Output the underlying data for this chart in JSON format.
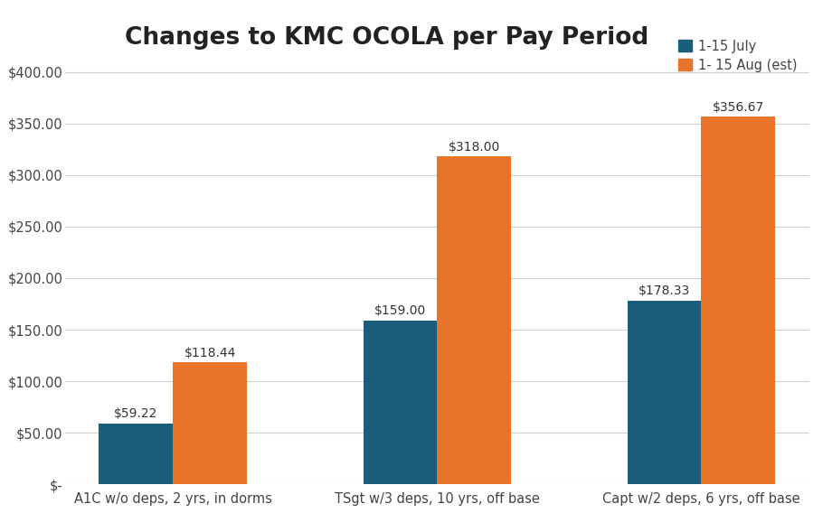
{
  "title": "Changes to KMC OCOLA per Pay Period",
  "categories": [
    "A1C w/o deps, 2 yrs, in dorms",
    "TSgt w/3 deps, 10 yrs, off base",
    "Capt w/2 deps, 6 yrs, off base"
  ],
  "series": [
    {
      "label": "1-15 July",
      "color": "#1b5e7b",
      "values": [
        59.22,
        159.0,
        178.33
      ]
    },
    {
      "label": "1- 15 Aug (est)",
      "color": "#e8742a",
      "values": [
        118.44,
        318.0,
        356.67
      ]
    }
  ],
  "ylim": [
    0,
    410
  ],
  "yticks": [
    0,
    50,
    100,
    150,
    200,
    250,
    300,
    350,
    400
  ],
  "bar_width": 0.28,
  "title_fontsize": 19,
  "tick_fontsize": 10.5,
  "legend_fontsize": 10.5,
  "annotation_fontsize": 10,
  "background_color": "#ffffff",
  "plot_bg_color": "#ffffff",
  "grid_color": "#d0d0d0",
  "title_font_weight": "bold",
  "title_color": "#222222",
  "tick_color": "#444444",
  "annotation_color": "#333333"
}
